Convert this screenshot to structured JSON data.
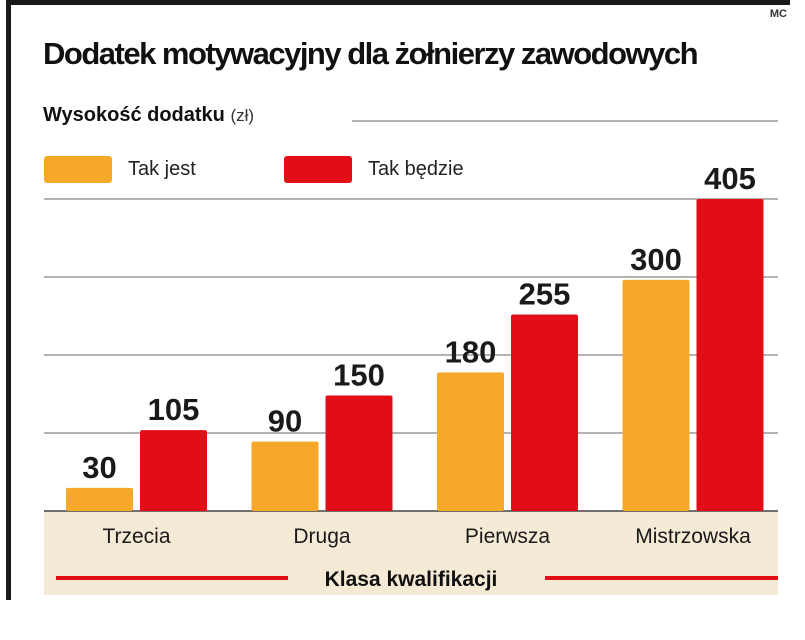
{
  "credit": "MC",
  "colors": {
    "series_current": "#f5a82a",
    "series_future": "#e30d18",
    "category_band": "#f5ead6",
    "grid": "#9a9a9a",
    "frame": "#1a1a1a"
  },
  "chart_data": {
    "type": "bar",
    "title": "Dodatek motywacyjny dla żołnierzy zawodowych",
    "ylabel": "Wysokość dodatku",
    "yunit": "(zł)",
    "xlabel": "Klasa kwalifikacji",
    "categories": [
      "Trzecia",
      "Druga",
      "Pierwsza",
      "Mistrzowska"
    ],
    "series": [
      {
        "name": "Tak jest",
        "color": "#f5a82a",
        "values": [
          30,
          90,
          180,
          300
        ]
      },
      {
        "name": "Tak będzie",
        "color": "#e30d18",
        "values": [
          105,
          150,
          255,
          405
        ]
      }
    ],
    "ylim": [
      0,
      405
    ],
    "grid": true,
    "legend": "top-left"
  }
}
